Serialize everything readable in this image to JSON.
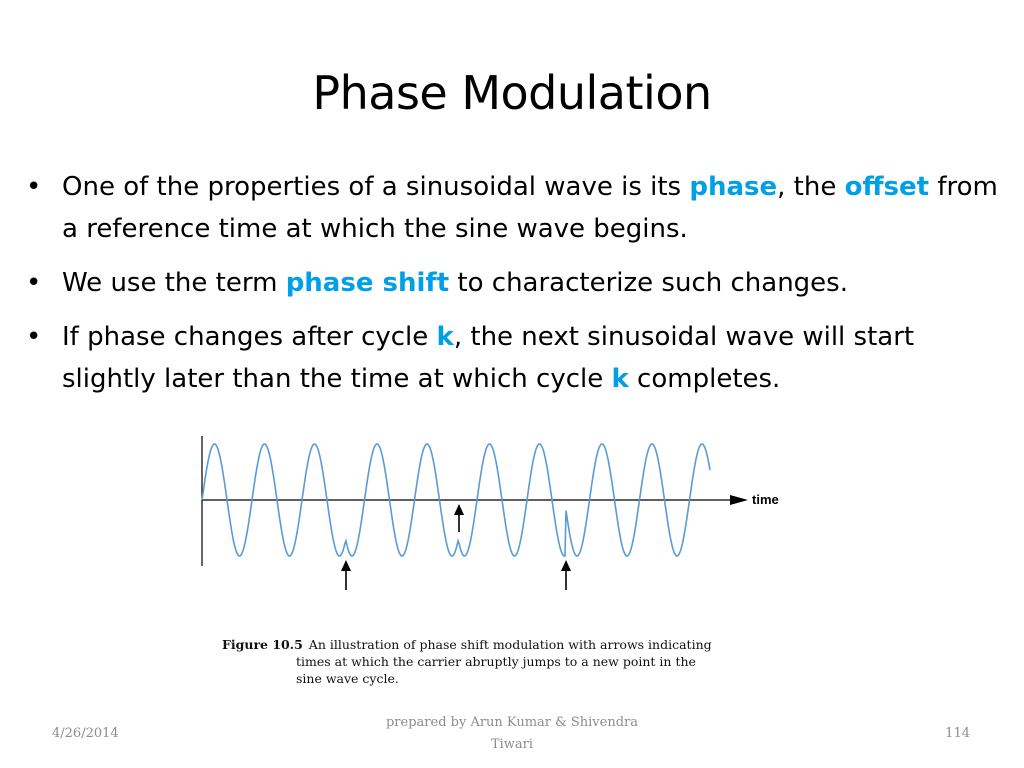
{
  "slide": {
    "title": "Phase Modulation",
    "bullet_symbol": "•"
  },
  "bullets": [
    {
      "segments": [
        {
          "text": "One of the properties of a sinusoidal wave is its ",
          "highlight": false
        },
        {
          "text": "phase",
          "highlight": true
        },
        {
          "text": ", the ",
          "highlight": false
        },
        {
          "text": "offset",
          "highlight": true
        },
        {
          "text": " from a reference time at which the sine wave begins.",
          "highlight": false
        }
      ]
    },
    {
      "segments": [
        {
          "text": "We use the term ",
          "highlight": false
        },
        {
          "text": "phase shift",
          "highlight": true
        },
        {
          "text": " to characterize such changes.",
          "highlight": false
        }
      ]
    },
    {
      "segments": [
        {
          "text": "If phase changes after cycle ",
          "highlight": false
        },
        {
          "text": "k",
          "highlight": true
        },
        {
          "text": ", the next sinusoidal wave will start slightly later than the time at which cycle ",
          "highlight": false
        },
        {
          "text": "k",
          "highlight": true
        },
        {
          "text": " completes.",
          "highlight": false
        }
      ]
    }
  ],
  "figure": {
    "axis_label": "time",
    "caption_lead": "Figure 10.5",
    "caption_line1": "An illustration of phase shift modulation with arrows indicating",
    "caption_line2": "times at which the carrier abruptly jumps to a new point in the",
    "caption_line3": "sine wave cycle."
  },
  "footer": {
    "date": "4/26/2014",
    "author_line1": "prepared by Arun Kumar & Shivendra",
    "author_line2": "Tiwari",
    "page": "114"
  },
  "colors": {
    "highlight": "#00a0e6",
    "wave": "#5b9bd5",
    "footer_text": "#8c8c8c"
  }
}
